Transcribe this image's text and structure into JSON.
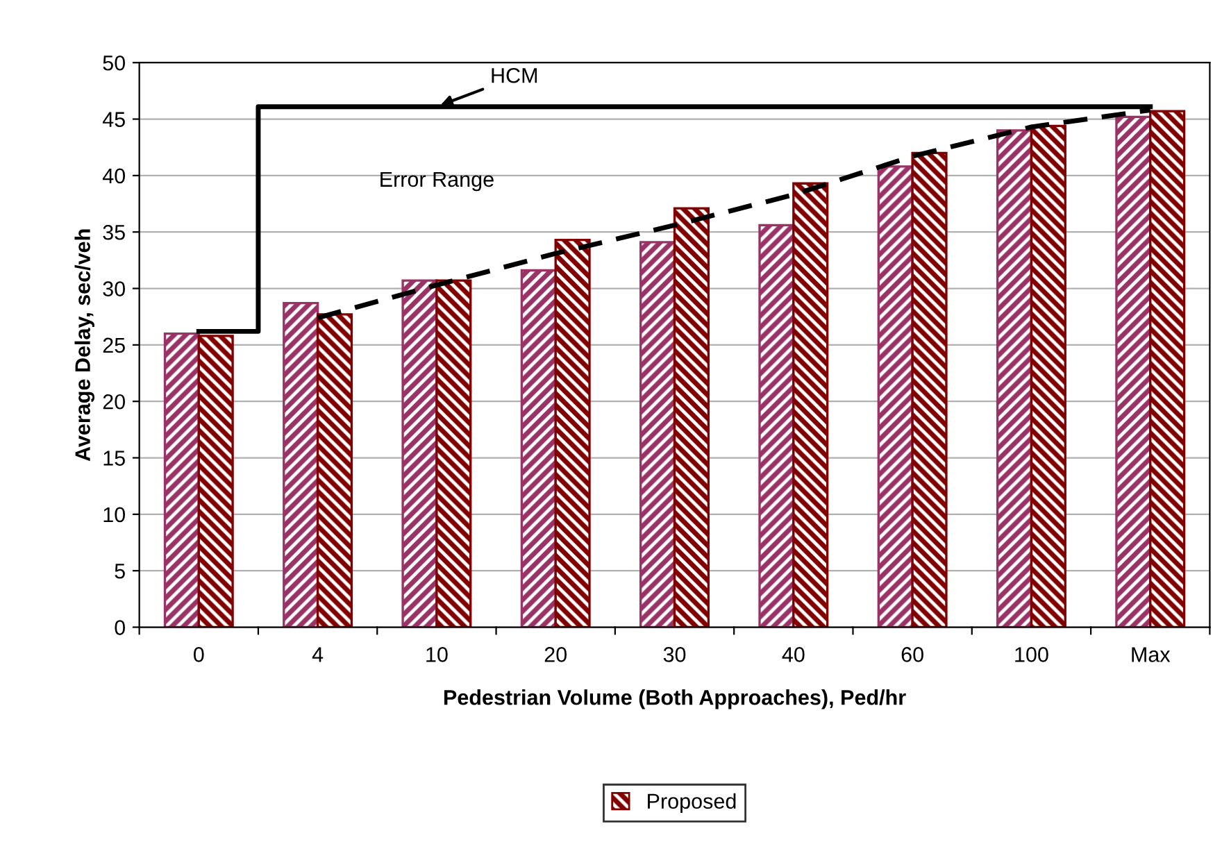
{
  "chart_data": {
    "type": "bar",
    "xlabel": "Pedestrian Volume (Both Approaches), Ped/hr",
    "ylabel": "Average Delay, sec/veh",
    "categories": [
      "0",
      "4",
      "10",
      "20",
      "30",
      "40",
      "60",
      "100",
      "Max"
    ],
    "series": [
      {
        "color": "#993366",
        "values": [
          26.0,
          28.7,
          30.7,
          31.6,
          34.1,
          35.6,
          40.8,
          44.0,
          45.2
        ]
      },
      {
        "name": "Proposed",
        "color": "#800000",
        "values": [
          25.8,
          27.7,
          30.7,
          34.3,
          37.1,
          39.3,
          42.0,
          44.4,
          45.7
        ]
      },
      {
        "type": "step",
        "color": "#000000",
        "line_style": "solid",
        "values": [
          26.2,
          46.1,
          46.1,
          46.1,
          46.1,
          46.1,
          46.1,
          46.1,
          46.1
        ]
      },
      {
        "type": "line",
        "color": "#000000",
        "line_style": "dashed",
        "values": [
          null,
          27.4,
          30.3,
          33.1,
          35.6,
          38.3,
          41.7,
          44.3,
          45.8
        ]
      }
    ],
    "annotations": [
      {
        "text": "HCM",
        "x": "10",
        "y": 46.1
      },
      "Error Range"
    ],
    "ylim": [
      0,
      50
    ],
    "yticks": [
      0,
      5,
      10,
      15,
      20,
      25,
      30,
      35,
      40,
      45,
      50
    ],
    "grid": "y",
    "legend": "bottom"
  }
}
